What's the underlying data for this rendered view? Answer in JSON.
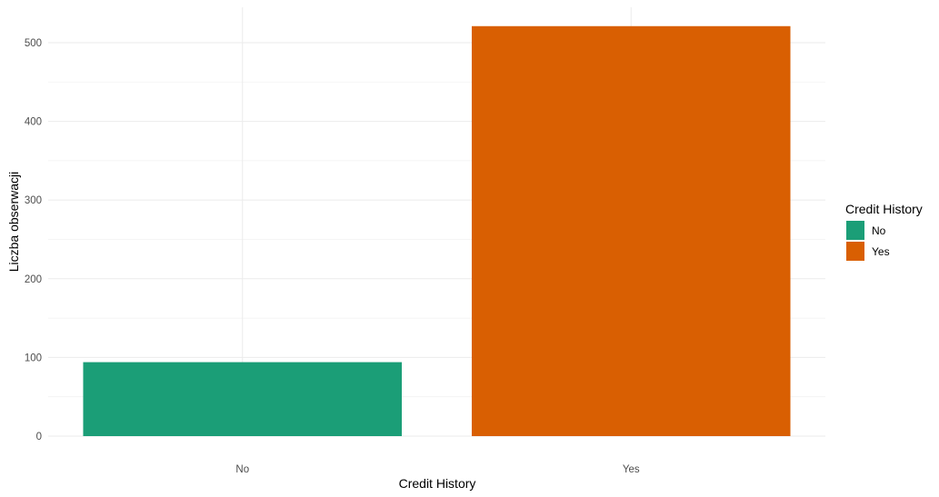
{
  "chart_data": {
    "type": "bar",
    "categories": [
      "No",
      "Yes"
    ],
    "values": [
      94,
      521
    ],
    "colors": [
      "#1b9e77",
      "#d95f02"
    ],
    "title": "",
    "xlabel": "Credit History",
    "ylabel": "Liczba obserwacji",
    "ylim": [
      0,
      545
    ],
    "yticks": [
      0,
      100,
      200,
      300,
      400,
      500
    ],
    "ytick_labels": [
      "0",
      "100",
      "200",
      "300",
      "400",
      "500"
    ],
    "grid": true,
    "legend": {
      "title": "Credit History",
      "position": "right",
      "items": [
        {
          "label": "No",
          "color": "#1b9e77"
        },
        {
          "label": "Yes",
          "color": "#d95f02"
        }
      ]
    }
  }
}
